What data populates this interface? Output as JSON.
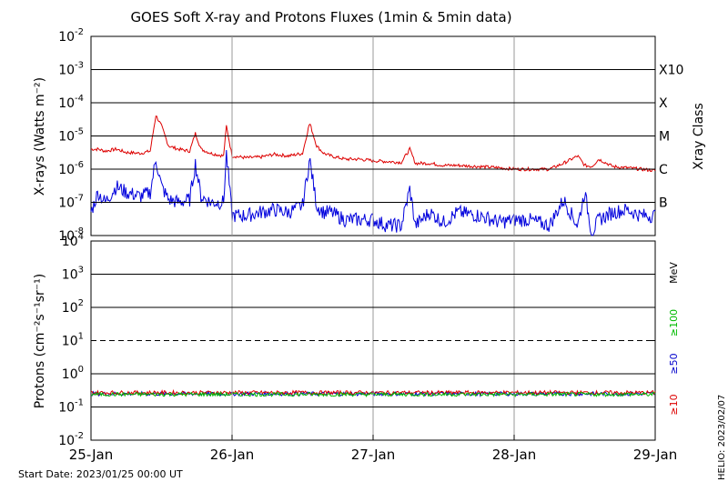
{
  "title": "GOES Soft X-ray and Protons Fluxes   (1min & 5min data)",
  "start_date_label": "Start Date: 2023/01/25 00:00 UT",
  "helio_label": "HELIO: 2023/02/07",
  "colors": {
    "xray_long": "#dd0000",
    "xray_short": "#0000dd",
    "proton_10": "#dd0000",
    "proton_50": "#0000cc",
    "proton_100": "#00bb00",
    "grid": "#999999"
  },
  "chart_data": [
    {
      "type": "line",
      "name": "xray",
      "ylabel": "X-rays (Watts m⁻²)",
      "y2label": "Xray Class",
      "yscale": "log",
      "ylim": [
        1e-08,
        0.01
      ],
      "xlim": [
        0,
        4
      ],
      "x_tick_labels": [
        "25-Jan",
        "26-Jan",
        "27-Jan",
        "28-Jan",
        "29-Jan"
      ],
      "y_ticks": [
        {
          "mant": "10",
          "exp": "-2"
        },
        {
          "mant": "10",
          "exp": "-3"
        },
        {
          "mant": "10",
          "exp": "-4"
        },
        {
          "mant": "10",
          "exp": "-5"
        },
        {
          "mant": "10",
          "exp": "-6"
        },
        {
          "mant": "10",
          "exp": "-7"
        },
        {
          "mant": "10",
          "exp": "-8"
        }
      ],
      "class_labels": [
        {
          "label": "X10",
          "value": 0.001
        },
        {
          "label": "X",
          "value": 0.0001
        },
        {
          "label": "M",
          "value": 1e-05
        },
        {
          "label": "C",
          "value": 1e-06
        },
        {
          "label": "B",
          "value": 1e-07
        }
      ],
      "series": [
        {
          "color": "#dd0000",
          "x": [
            0.0,
            0.05,
            0.1,
            0.18,
            0.25,
            0.35,
            0.42,
            0.46,
            0.5,
            0.55,
            0.62,
            0.7,
            0.74,
            0.78,
            0.85,
            0.94,
            0.96,
            1.0,
            1.1,
            1.2,
            1.3,
            1.4,
            1.5,
            1.55,
            1.6,
            1.65,
            1.7,
            1.8,
            1.9,
            2.0,
            2.1,
            2.2,
            2.26,
            2.3,
            2.4,
            2.5,
            2.6,
            2.75,
            2.9,
            3.0,
            3.1,
            3.25,
            3.35,
            3.45,
            3.5,
            3.55,
            3.6,
            3.7,
            3.8,
            3.9,
            4.0
          ],
          "values": [
            4e-06,
            4e-06,
            3.5e-06,
            4e-06,
            3.2e-06,
            3e-06,
            3.5e-06,
            4.2e-05,
            2e-05,
            5e-06,
            4e-06,
            3.5e-06,
            1.2e-05,
            4e-06,
            3e-06,
            2.5e-06,
            2e-05,
            2.5e-06,
            2.2e-06,
            2.3e-06,
            2.8e-06,
            2.5e-06,
            3e-06,
            2.5e-05,
            5e-06,
            3e-06,
            2.5e-06,
            2e-06,
            2e-06,
            1.8e-06,
            1.7e-06,
            1.6e-06,
            4e-06,
            1.5e-06,
            1.5e-06,
            1.3e-06,
            1.3e-06,
            1.2e-06,
            1.1e-06,
            1e-06,
            1e-06,
            1e-06,
            1.5e-06,
            2.5e-06,
            1.3e-06,
            1.2e-06,
            2e-06,
            1.2e-06,
            1.1e-06,
            1e-06,
            9e-07
          ]
        },
        {
          "color": "#0000dd",
          "x": [
            0.0,
            0.05,
            0.1,
            0.18,
            0.25,
            0.35,
            0.42,
            0.46,
            0.5,
            0.55,
            0.62,
            0.7,
            0.74,
            0.78,
            0.85,
            0.94,
            0.96,
            1.0,
            1.1,
            1.2,
            1.3,
            1.4,
            1.5,
            1.55,
            1.6,
            1.65,
            1.7,
            1.8,
            1.9,
            2.0,
            2.1,
            2.2,
            2.26,
            2.3,
            2.4,
            2.5,
            2.6,
            2.75,
            2.9,
            3.0,
            3.1,
            3.25,
            3.35,
            3.45,
            3.5,
            3.55,
            3.6,
            3.7,
            3.8,
            3.9,
            4.0
          ],
          "values": [
            5e-08,
            2e-07,
            1e-07,
            3e-07,
            2e-07,
            1.5e-07,
            2e-07,
            2e-06,
            3e-07,
            1.2e-07,
            1e-07,
            1.2e-07,
            1.5e-06,
            1.5e-07,
            1e-07,
            1e-07,
            3e-06,
            4e-08,
            4e-08,
            5e-08,
            6e-08,
            5e-08,
            8e-08,
            2e-06,
            8e-08,
            5e-08,
            5e-08,
            3e-08,
            3e-08,
            3e-08,
            2e-08,
            2e-08,
            2.5e-07,
            2e-08,
            5e-08,
            2.5e-08,
            5e-08,
            4e-08,
            2.5e-08,
            3e-08,
            3e-08,
            2e-08,
            1.2e-07,
            2e-08,
            2e-07,
            1.2e-08,
            3e-08,
            5e-08,
            6e-08,
            4e-08,
            4e-08
          ]
        }
      ]
    },
    {
      "type": "line",
      "name": "protons",
      "ylabel": "Protons (cm⁻²s⁻¹sr⁻¹)",
      "yscale": "log",
      "ylim": [
        0.01,
        10000
      ],
      "xlim": [
        0,
        4
      ],
      "y_ticks": [
        {
          "mant": "10",
          "exp": "4"
        },
        {
          "mant": "10",
          "exp": "3"
        },
        {
          "mant": "10",
          "exp": "2"
        },
        {
          "mant": "10",
          "exp": "1"
        },
        {
          "mant": "10",
          "exp": "0"
        },
        {
          "mant": "10",
          "exp": "-1"
        },
        {
          "mant": "10",
          "exp": "-2"
        }
      ],
      "threshold": 10,
      "right_labels": [
        {
          "label": "MeV",
          "color": "#000000"
        },
        {
          "label": "≥100",
          "color": "#00bb00"
        },
        {
          "label": "≥50",
          "color": "#0000cc"
        },
        {
          "label": "≥10",
          "color": "#dd0000"
        }
      ],
      "series": [
        {
          "color": "#0000cc",
          "level": 0.25
        },
        {
          "color": "#dd0000",
          "level": 0.27
        },
        {
          "color": "#00bb00",
          "level": 0.24
        }
      ]
    }
  ]
}
